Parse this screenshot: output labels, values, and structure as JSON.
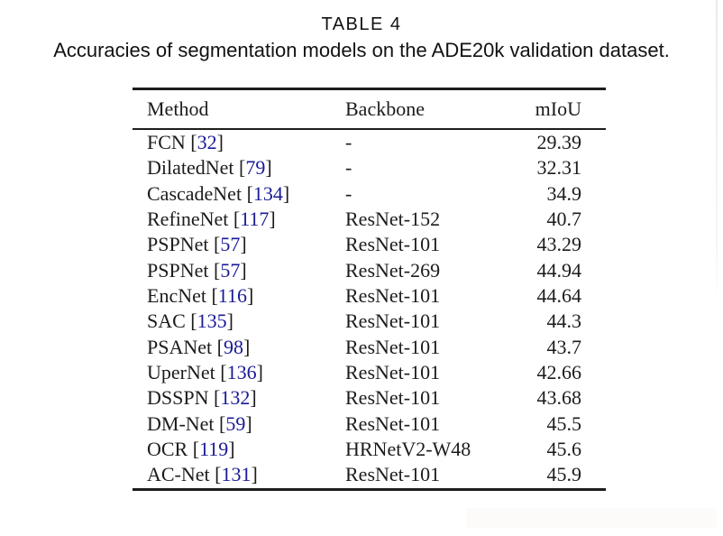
{
  "page": {
    "title": "TABLE 4",
    "caption": "Accuracies of segmentation models on the ADE20k validation dataset."
  },
  "table": {
    "columns": {
      "method": "Method",
      "backbone": "Backbone",
      "miou": "mIoU"
    },
    "cite_open": "[",
    "cite_close": "]",
    "citation_color": "#1a1a96",
    "rule_color": "#1d1d1d",
    "rows": [
      {
        "method": "FCN",
        "cite": "32",
        "backbone": "-",
        "miou": "29.39"
      },
      {
        "method": "DilatedNet",
        "cite": "79",
        "backbone": "-",
        "miou": "32.31"
      },
      {
        "method": "CascadeNet",
        "cite": "134",
        "backbone": "-",
        "miou": "34.9"
      },
      {
        "method": "RefineNet",
        "cite": "117",
        "backbone": "ResNet-152",
        "miou": "40.7"
      },
      {
        "method": "PSPNet",
        "cite": "57",
        "backbone": "ResNet-101",
        "miou": "43.29"
      },
      {
        "method": "PSPNet",
        "cite": "57",
        "backbone": "ResNet-269",
        "miou": "44.94"
      },
      {
        "method": "EncNet",
        "cite": "116",
        "backbone": "ResNet-101",
        "miou": "44.64"
      },
      {
        "method": "SAC",
        "cite": "135",
        "backbone": "ResNet-101",
        "miou": "44.3"
      },
      {
        "method": "PSANet",
        "cite": "98",
        "backbone": "ResNet-101",
        "miou": "43.7"
      },
      {
        "method": "UperNet",
        "cite": "136",
        "backbone": "ResNet-101",
        "miou": "42.66"
      },
      {
        "method": "DSSPN",
        "cite": "132",
        "backbone": "ResNet-101",
        "miou": "43.68"
      },
      {
        "method": "DM-Net",
        "cite": "59",
        "backbone": "ResNet-101",
        "miou": "45.5"
      },
      {
        "method": "OCR",
        "cite": "119",
        "backbone": "HRNetV2-W48",
        "miou": "45.6"
      },
      {
        "method": "AC-Net",
        "cite": "131",
        "backbone": "ResNet-101",
        "miou": "45.9"
      }
    ]
  }
}
